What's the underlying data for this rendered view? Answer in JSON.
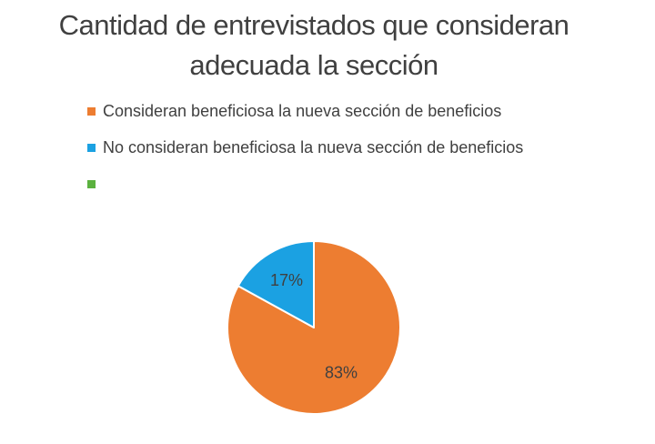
{
  "chart_data": {
    "type": "pie",
    "title": "Cantidad de entrevistados que consideran adecuada la sección",
    "title_lines": [
      "Cantidad de entrevistados que consideran",
      "adecuada la sección"
    ],
    "legend_position": "top-left",
    "slices": [
      {
        "name": "Consideran beneficiosa la nueva sección de beneficios",
        "value": 83,
        "label": "83%",
        "color": "#ED7D31"
      },
      {
        "name": "No consideran beneficiosa la nueva sección de beneficios",
        "value": 17,
        "label": "17%",
        "color": "#1BA1E2"
      },
      {
        "name": "",
        "value": 0,
        "label": "",
        "color": "#5BB13F"
      }
    ]
  }
}
